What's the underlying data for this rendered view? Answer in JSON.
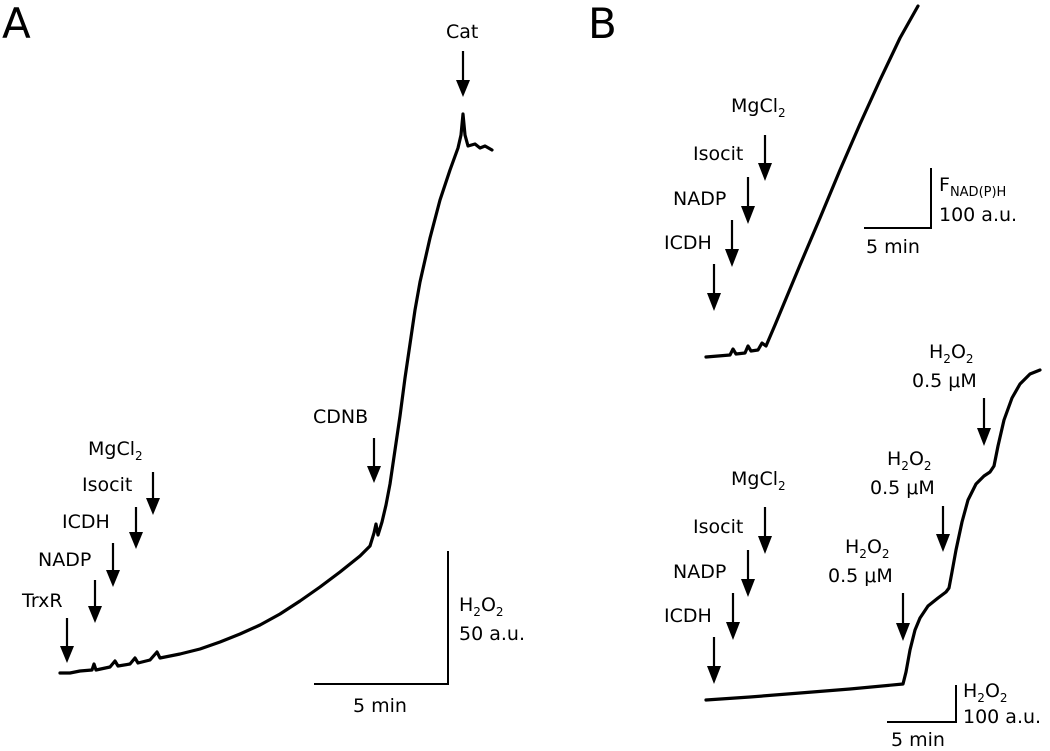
{
  "panels": {
    "a": {
      "letter": "A"
    },
    "b": {
      "letter": "B"
    }
  },
  "chart_data": [
    {
      "type": "line",
      "panel": "A",
      "description": "H2O2 trace",
      "additions": [
        {
          "label": "TrxR",
          "t": 0.2
        },
        {
          "label": "NADP",
          "t": 1.0
        },
        {
          "label": "ICDH",
          "t": 1.7
        },
        {
          "label": "Isocit",
          "t": 2.4
        },
        {
          "label": "MgCl",
          "sub": "2",
          "t": 2.9
        },
        {
          "label": "CDNB",
          "t": 10.6
        },
        {
          "label": "Cat",
          "t": 13.9
        }
      ],
      "scale_bar": {
        "time": "5 min",
        "y_label": "H",
        "y_sub": "2",
        "y_label2": "O",
        "y_sub2": "2",
        "y_units": "50 a.u."
      }
    },
    {
      "type": "line",
      "panel": "B-top",
      "description": "NAD(P)H fluorescence trace",
      "additions": [
        {
          "label": "ICDH",
          "t": 0.3
        },
        {
          "label": "NADP",
          "t": 1.0
        },
        {
          "label": "Isocit",
          "t": 1.6
        },
        {
          "label": "MgCl",
          "sub": "2",
          "t": 2.2
        }
      ],
      "scale_bar": {
        "time": "5 min",
        "y_label": "F",
        "y_sub": "NAD(P)H",
        "y_units": "100 a.u."
      }
    },
    {
      "type": "line",
      "panel": "B-bottom",
      "description": "H2O2 trace",
      "additions": [
        {
          "label": "ICDH",
          "t": 0.3
        },
        {
          "label": "NADP",
          "t": 0.9
        },
        {
          "label": "Isocit",
          "t": 1.5
        },
        {
          "label": "MgCl",
          "sub": "2",
          "t": 2.1
        },
        {
          "label": "H",
          "sub": "2",
          "label2": "O",
          "sub2": "2",
          "line2": "0.5 μM",
          "t": 7.7
        },
        {
          "label": "H",
          "sub": "2",
          "label2": "O",
          "sub2": "2",
          "line2": "0.5 μM",
          "t": 9.0
        },
        {
          "label": "H",
          "sub": "2",
          "label2": "O",
          "sub2": "2",
          "line2": "0.5 μM",
          "t": 10.2
        }
      ],
      "scale_bar": {
        "time": "5 min",
        "y_label": "H",
        "y_sub": "2",
        "y_label2": "O",
        "y_sub2": "2",
        "y_units": "100 a.u."
      }
    }
  ]
}
